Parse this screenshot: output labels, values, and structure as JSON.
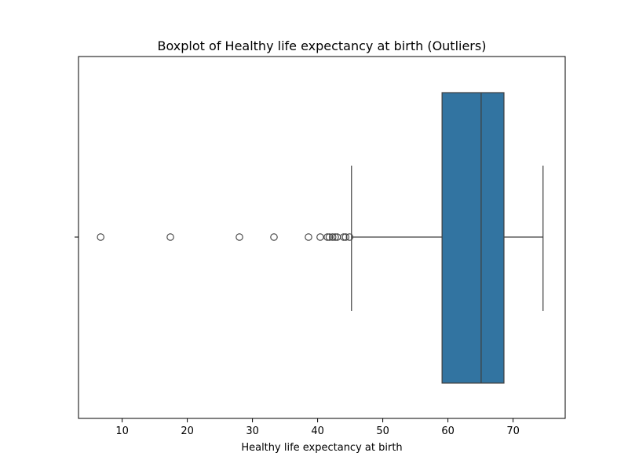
{
  "chart_data": {
    "type": "boxplot",
    "orientation": "horizontal",
    "title": "Boxplot of Healthy life expectancy at birth (Outliers)",
    "xlabel": "Healthy life expectancy at birth",
    "ylabel": "",
    "xlim": [
      3.3,
      78.0
    ],
    "xticks": [
      10,
      20,
      30,
      40,
      50,
      60,
      70
    ],
    "box": {
      "whisker_low": 45.2,
      "q1": 59.1,
      "median": 65.1,
      "q3": 68.6,
      "whisker_high": 74.6,
      "color": "#3274a1",
      "edge_color": "#3f3f3f"
    },
    "outliers": [
      6.7,
      17.4,
      28.0,
      33.3,
      38.6,
      40.4,
      41.5,
      41.8,
      42.3,
      42.7,
      43.0,
      44.0,
      44.3,
      44.9
    ],
    "grid": false,
    "legend": "none"
  }
}
